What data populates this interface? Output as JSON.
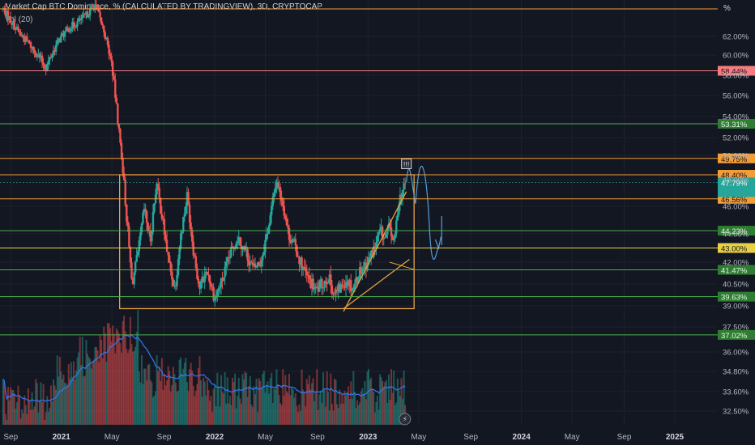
{
  "header": {
    "title": "Market Cap BTC Dominance, % (CALCULATED BY TRADINGVIEW), 3D, CRYPTOCAP",
    "volume_label": "Vol (20)",
    "unit": "%"
  },
  "colors": {
    "background": "#131722",
    "up": "#26a69a",
    "down": "#ef5350",
    "orange": "#f29d38",
    "green": "#4caf50",
    "pink": "#f77c80",
    "yellow": "#e8d044",
    "ma": "#3179f5",
    "arrow": "#5b9bd5",
    "axis_text": "#b2b5be"
  },
  "chart_data": {
    "type": "candlestick",
    "title": "Market Cap BTC Dominance, % (CALCULATED BY TRADINGVIEW), 3D, CRYPTOCAP",
    "y_axis_side": "right",
    "x_tick_labels": [
      "Sep",
      "2021",
      "May",
      "Sep",
      "2022",
      "May",
      "Sep",
      "2023",
      "May",
      "Sep",
      "2024",
      "May",
      "Sep",
      "2025"
    ],
    "y_tick_labels": [
      "62.00%",
      "60.00%",
      "58.00%",
      "56.00%",
      "54.00%",
      "52.00%",
      "50.00%",
      "48.00%",
      "46.00%",
      "44.00%",
      "42.00%",
      "40.50%",
      "39.00%",
      "37.50%",
      "36.00%",
      "34.80%",
      "33.60%",
      "32.50%"
    ],
    "ylim": [
      32.0,
      66.5
    ],
    "price_path": [
      [
        2020.62,
        65.0
      ],
      [
        2020.72,
        62.5
      ],
      [
        2020.8,
        61.0
      ],
      [
        2020.9,
        58.8
      ],
      [
        2020.98,
        61.5
      ],
      [
        2021.04,
        62.8
      ],
      [
        2021.1,
        63.5
      ],
      [
        2021.16,
        64.3
      ],
      [
        2021.22,
        65.5
      ],
      [
        2021.28,
        62.5
      ],
      [
        2021.33,
        59.0
      ],
      [
        2021.38,
        52.0
      ],
      [
        2021.42,
        46.0
      ],
      [
        2021.46,
        40.5
      ],
      [
        2021.5,
        42.5
      ],
      [
        2021.54,
        45.8
      ],
      [
        2021.58,
        43.5
      ],
      [
        2021.62,
        47.8
      ],
      [
        2021.66,
        45.0
      ],
      [
        2021.7,
        42.0
      ],
      [
        2021.74,
        40.2
      ],
      [
        2021.78,
        44.0
      ],
      [
        2021.82,
        46.8
      ],
      [
        2021.86,
        43.0
      ],
      [
        2021.9,
        40.2
      ],
      [
        2021.95,
        41.5
      ],
      [
        2022.0,
        39.5
      ],
      [
        2022.05,
        40.8
      ],
      [
        2022.1,
        42.5
      ],
      [
        2022.15,
        43.8
      ],
      [
        2022.2,
        42.8
      ],
      [
        2022.25,
        41.5
      ],
      [
        2022.3,
        42.0
      ],
      [
        2022.36,
        45.0
      ],
      [
        2022.4,
        48.0
      ],
      [
        2022.44,
        46.5
      ],
      [
        2022.48,
        44.0
      ],
      [
        2022.52,
        43.2
      ],
      [
        2022.56,
        42.0
      ],
      [
        2022.6,
        41.0
      ],
      [
        2022.66,
        40.0
      ],
      [
        2022.7,
        40.5
      ],
      [
        2022.74,
        41.0
      ],
      [
        2022.78,
        39.8
      ],
      [
        2022.82,
        40.2
      ],
      [
        2022.86,
        40.9
      ],
      [
        2022.9,
        40.2
      ],
      [
        2022.95,
        41.5
      ],
      [
        2023.0,
        42.0
      ],
      [
        2023.04,
        43.0
      ],
      [
        2023.08,
        44.2
      ],
      [
        2023.11,
        43.6
      ],
      [
        2023.14,
        44.5
      ],
      [
        2023.17,
        43.2
      ],
      [
        2023.2,
        46.5
      ],
      [
        2023.23,
        47.3
      ],
      [
        2023.25,
        47.8
      ]
    ],
    "indicator_lines": [
      {
        "value": "%",
        "color": "orange"
      },
      {
        "value": "58.44%",
        "color": "pink"
      },
      {
        "value": "53.31%",
        "color": "green"
      },
      {
        "value": "49.75%",
        "color": "orange"
      },
      {
        "value": "48.40%",
        "color": "orange"
      },
      {
        "value": "46.56%",
        "color": "orange"
      },
      {
        "value": "44.23%",
        "color": "green"
      },
      {
        "value": "43.00%",
        "color": "yellow"
      },
      {
        "value": "41.47%",
        "color": "green"
      },
      {
        "value": "39.63%",
        "color": "green"
      },
      {
        "value": "37.02%",
        "color": "green"
      }
    ],
    "current_price_label": "47.79%"
  }
}
